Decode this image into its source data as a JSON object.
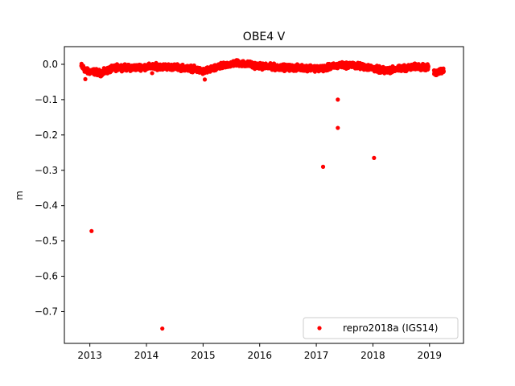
{
  "chart_data": {
    "type": "scatter",
    "title": "OBE4 V",
    "xlabel": "",
    "ylabel": "m",
    "xlim": [
      2012.55,
      2019.6
    ],
    "ylim": [
      -0.79,
      0.05
    ],
    "xticks": [
      2013,
      2014,
      2015,
      2016,
      2017,
      2018,
      2019
    ],
    "yticks": [
      0.0,
      -0.1,
      -0.2,
      -0.3,
      -0.4,
      -0.5,
      -0.6,
      -0.7
    ],
    "ytick_labels": [
      "0.0",
      "−0.1",
      "−0.2",
      "−0.3",
      "−0.4",
      "−0.5",
      "−0.6",
      "−0.7"
    ],
    "grid": false,
    "legend_position": "lower-right",
    "series": [
      {
        "name": "repro2018a (IGS14)",
        "color": "#ff0000",
        "marker": "circle",
        "dense_band": {
          "x_range": [
            2012.85,
            2019.25
          ],
          "gaps": [
            [
              2018.98,
              2019.08
            ]
          ],
          "profile": [
            [
              2012.85,
              -0.005
            ],
            [
              2012.95,
              -0.02
            ],
            [
              2013.05,
              -0.02
            ],
            [
              2013.2,
              -0.025
            ],
            [
              2013.35,
              -0.015
            ],
            [
              2013.5,
              -0.008
            ],
            [
              2013.7,
              -0.01
            ],
            [
              2013.9,
              -0.008
            ],
            [
              2014.2,
              -0.006
            ],
            [
              2014.5,
              -0.008
            ],
            [
              2014.8,
              -0.012
            ],
            [
              2015.0,
              -0.02
            ],
            [
              2015.2,
              -0.012
            ],
            [
              2015.4,
              -0.002
            ],
            [
              2015.6,
              0.004
            ],
            [
              2015.8,
              0.0
            ],
            [
              2016.0,
              -0.005
            ],
            [
              2016.3,
              -0.008
            ],
            [
              2016.6,
              -0.01
            ],
            [
              2016.9,
              -0.01
            ],
            [
              2017.1,
              -0.012
            ],
            [
              2017.4,
              -0.003
            ],
            [
              2017.6,
              -0.002
            ],
            [
              2017.9,
              -0.008
            ],
            [
              2018.2,
              -0.018
            ],
            [
              2018.5,
              -0.012
            ],
            [
              2018.8,
              -0.006
            ],
            [
              2018.97,
              -0.01
            ],
            [
              2019.1,
              -0.025
            ],
            [
              2019.25,
              -0.015
            ]
          ],
          "spread": 0.012
        },
        "outliers": [
          {
            "x": 2013.03,
            "y": -0.472
          },
          {
            "x": 2014.1,
            "y": -0.025
          },
          {
            "x": 2014.28,
            "y": -0.748
          },
          {
            "x": 2017.12,
            "y": -0.29
          },
          {
            "x": 2017.38,
            "y": -0.1
          },
          {
            "x": 2017.38,
            "y": -0.18
          },
          {
            "x": 2018.02,
            "y": -0.265
          },
          {
            "x": 2012.92,
            "y": -0.042
          },
          {
            "x": 2015.03,
            "y": -0.043
          }
        ]
      }
    ]
  }
}
